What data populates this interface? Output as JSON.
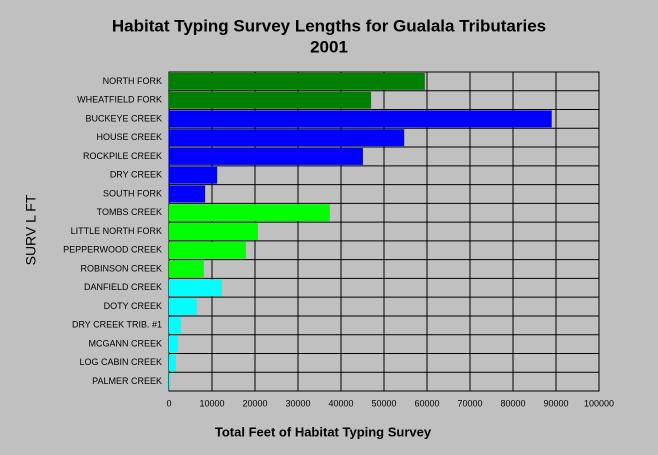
{
  "chart_data": {
    "type": "hbar",
    "title": "Habitat Typing Survey Lengths for Gualala Tributaries",
    "subtitle": "2001",
    "xlabel": "Total Feet of Habitat Typing Survey",
    "ylabel": "SURV L FT",
    "categories": [
      "NORTH FORK",
      "WHEATFIELD FORK",
      "BUCKEYE CREEK",
      "HOUSE CREEK",
      "ROCKPILE CREEK",
      "DRY CREEK",
      "SOUTH FORK",
      "TOMBS CREEK",
      "LITTLE NORTH FORK",
      "PEPPERWOOD CREEK",
      "ROBINSON CREEK",
      "DANFIELD CREEK",
      "DOTY CREEK",
      "DRY CREEK TRIB. #1",
      "MCGANN CREEK",
      "LOG CABIN CREEK",
      "PALMER CREEK"
    ],
    "values": [
      59500,
      47000,
      89000,
      54700,
      45100,
      11200,
      8400,
      37400,
      20700,
      17900,
      8100,
      12300,
      6500,
      2800,
      2100,
      1600,
      300
    ],
    "colors": [
      "#008000",
      "#008000",
      "#0000ff",
      "#0000ff",
      "#0000ff",
      "#0000ff",
      "#0000ff",
      "#00ff00",
      "#00ff00",
      "#00ff00",
      "#00ff00",
      "#00ffff",
      "#00ffff",
      "#00ffff",
      "#00ffff",
      "#00ffff",
      "#00ffff"
    ],
    "xlim": [
      0,
      100000
    ],
    "xticks": [
      0,
      10000,
      20000,
      30000,
      40000,
      50000,
      60000,
      70000,
      80000,
      90000,
      100000
    ],
    "grid": true
  }
}
